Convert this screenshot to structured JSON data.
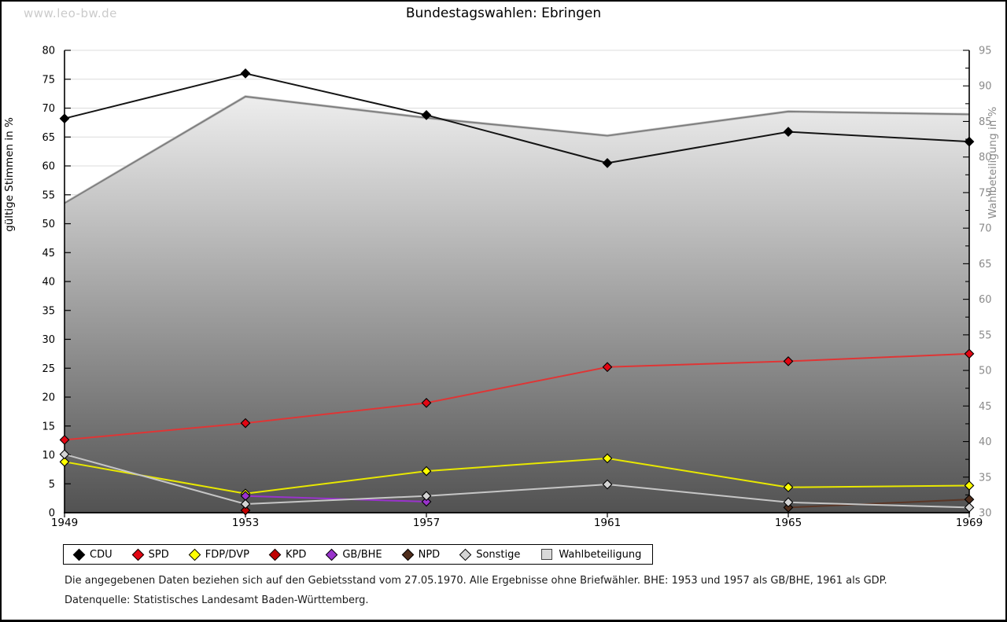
{
  "watermark": "www.leo-bw.de",
  "chart_data": {
    "type": "line",
    "title": "Bundestagswahlen: Ebringen",
    "x": [
      1949,
      1953,
      1957,
      1961,
      1965,
      1969
    ],
    "grid": true,
    "legend_position": "bottom",
    "axes": {
      "left": {
        "label": "gültige Stimmen in %",
        "min": 0,
        "max": 80,
        "step": 5,
        "tick_color": "#000000",
        "text_color": "#000000"
      },
      "right": {
        "label": "Wahlbeteiligung in %",
        "min": 30,
        "max": 95,
        "step": 5,
        "minor_step": 2.5,
        "tick_color": "#000000",
        "text_color": "#8a8a8a"
      }
    },
    "series": [
      {
        "name": "Wahlbeteiligung",
        "kind": "area",
        "axis": "right",
        "line_color": "#7d7d7d",
        "edge_light": "#c4c4c4",
        "fill_top": "#ffffff",
        "fill_bottom": "#525252",
        "marker": "square",
        "marker_fill": "#d9d9d9",
        "points": [
          [
            1949,
            73.5
          ],
          [
            1953,
            88.5
          ],
          [
            1957,
            85.5
          ],
          [
            1961,
            83.0
          ],
          [
            1965,
            86.4
          ],
          [
            1969,
            86.0
          ]
        ]
      },
      {
        "name": "CDU",
        "kind": "line",
        "axis": "left",
        "line_color": "#141414",
        "marker": "diamond",
        "marker_fill": "#000000",
        "points": [
          [
            1949,
            68.2
          ],
          [
            1953,
            76.0
          ],
          [
            1957,
            68.8
          ],
          [
            1961,
            60.5
          ],
          [
            1965,
            65.9
          ],
          [
            1969,
            64.2
          ]
        ]
      },
      {
        "name": "SPD",
        "kind": "line",
        "axis": "left",
        "line_color": "#df3535",
        "marker": "diamond",
        "marker_fill": "#e30613",
        "points": [
          [
            1949,
            12.6
          ],
          [
            1953,
            15.5
          ],
          [
            1957,
            19.0
          ],
          [
            1961,
            25.2
          ],
          [
            1965,
            26.2
          ],
          [
            1969,
            27.5
          ]
        ]
      },
      {
        "name": "FDP/DVP",
        "kind": "line",
        "axis": "left",
        "line_color": "#e8e800",
        "marker": "diamond",
        "marker_fill": "#ffff00",
        "points": [
          [
            1949,
            8.8
          ],
          [
            1953,
            3.3
          ],
          [
            1957,
            7.2
          ],
          [
            1961,
            9.4
          ],
          [
            1965,
            4.4
          ],
          [
            1969,
            4.7
          ]
        ]
      },
      {
        "name": "KPD",
        "kind": "line",
        "axis": "left",
        "line_color": "#c00000",
        "marker": "diamond",
        "marker_fill": "#c00000",
        "points": [
          [
            1953,
            0.4
          ]
        ]
      },
      {
        "name": "GB/BHE",
        "kind": "line",
        "axis": "left",
        "line_color": "#9933cc",
        "marker": "diamond",
        "marker_fill": "#9933cc",
        "points": [
          [
            1953,
            2.9
          ],
          [
            1957,
            1.9
          ]
        ]
      },
      {
        "name": "NPD",
        "kind": "line",
        "axis": "left",
        "line_color": "#5a3626",
        "marker": "diamond",
        "marker_fill": "#4f2d1c",
        "points": [
          [
            1965,
            0.9
          ],
          [
            1969,
            2.3
          ]
        ]
      },
      {
        "name": "Sonstige",
        "kind": "line",
        "axis": "left",
        "line_color": "#c6c6c6",
        "marker": "diamond",
        "marker_fill": "#d4d4d4",
        "points": [
          [
            1949,
            10.1
          ],
          [
            1953,
            1.5
          ],
          [
            1957,
            2.9
          ],
          [
            1961,
            4.9
          ],
          [
            1965,
            1.8
          ],
          [
            1969,
            0.9
          ]
        ]
      }
    ],
    "legend_order": [
      "CDU",
      "SPD",
      "FDP/DVP",
      "KPD",
      "GB/BHE",
      "NPD",
      "Sonstige",
      "Wahlbeteiligung"
    ]
  },
  "footnotes": [
    "Die angegebenen Daten beziehen sich auf den Gebietsstand vom 27.05.1970. Alle Ergebnisse ohne Briefwähler. BHE: 1953 und 1957 als GB/BHE, 1961 als GDP.",
    "Datenquelle: Statistisches Landesamt Baden-Württemberg."
  ]
}
